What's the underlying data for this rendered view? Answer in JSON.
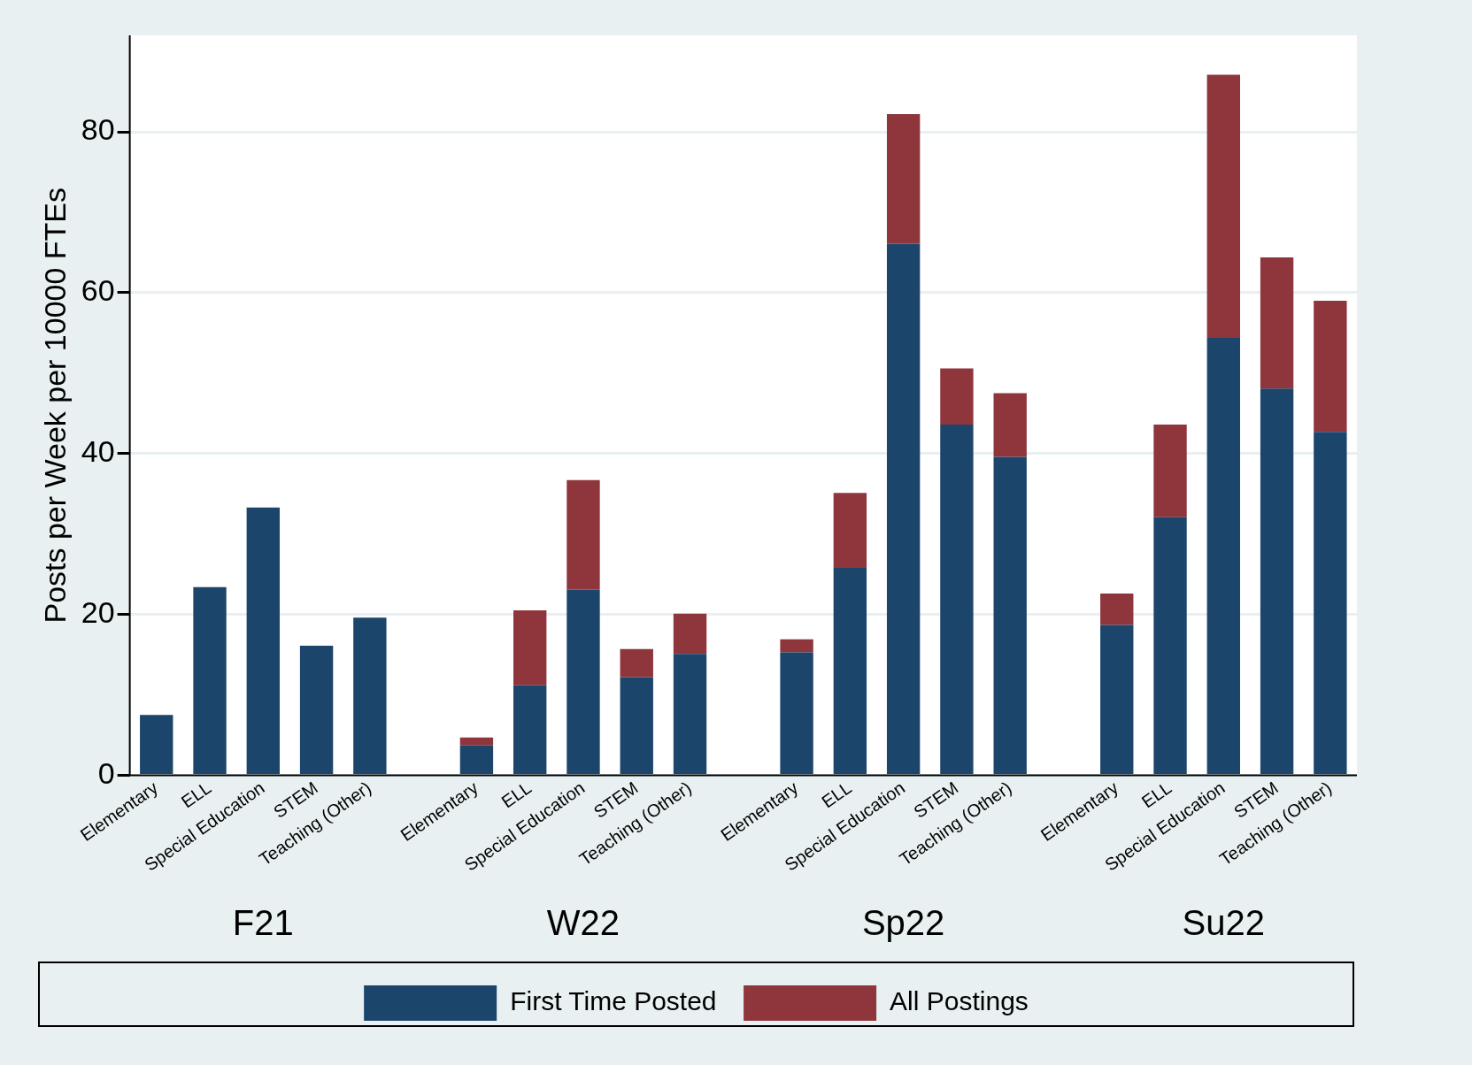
{
  "chart_data": {
    "type": "bar",
    "stacked": true,
    "ylabel": "Posts per Week per 10000 FTEs",
    "categories": [
      "Elementary",
      "ELL",
      "Special Education",
      "STEM",
      "Teaching (Other)",
      "Elementary",
      "ELL",
      "Special Education",
      "STEM",
      "Teaching (Other)",
      "Elementary",
      "ELL",
      "Special Education",
      "STEM",
      "Teaching (Other)",
      "Elementary",
      "ELL",
      "Special Education",
      "STEM",
      "Teaching (Other)"
    ],
    "series": [
      {
        "name": "First Time Posted",
        "color": "#1c456c",
        "values": [
          7.5,
          23.4,
          33.3,
          16.1,
          19.6,
          3.7,
          11.2,
          23.1,
          12.2,
          15.1,
          15.3,
          25.8,
          66.1,
          43.6,
          39.6,
          18.7,
          32.1,
          54.4,
          48.1,
          42.7
        ]
      },
      {
        "name": "All Postings",
        "color": "#8f353c",
        "values": [
          null,
          null,
          null,
          null,
          null,
          1.0,
          9.3,
          13.6,
          3.5,
          5.0,
          1.6,
          9.3,
          16.1,
          7.0,
          7.9,
          3.9,
          11.5,
          32.7,
          16.3,
          16.3
        ]
      }
    ],
    "annotations": [
      "F21",
      "W22",
      "Sp22",
      "Su22"
    ],
    "ylim": [
      0,
      92
    ],
    "yticks": [
      0,
      20,
      40,
      60,
      80
    ],
    "grid": "y",
    "legend": "bottom"
  }
}
